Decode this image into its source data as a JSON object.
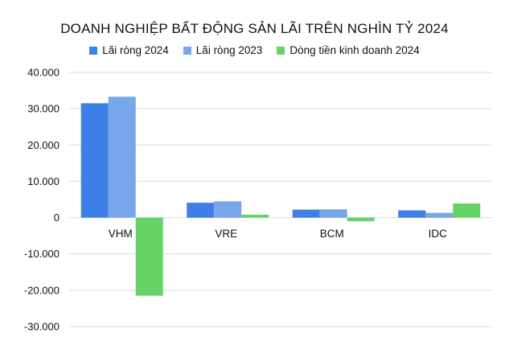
{
  "chart_data": {
    "type": "bar",
    "title": "DOANH NGHIỆP BẤT ĐỘNG SẢN LÃI TRÊN NGHÌN TỶ 2024",
    "categories": [
      "VHM",
      "VRE",
      "BCM",
      "IDC"
    ],
    "series": [
      {
        "name": "Lãi ròng 2024",
        "color": "#3f7fe8",
        "values": [
          31500,
          4100,
          2200,
          2000
        ]
      },
      {
        "name": "Lãi ròng 2023",
        "color": "#78a6ea",
        "values": [
          33300,
          4500,
          2300,
          1300
        ]
      },
      {
        "name": "Dòng tiền kinh doanh 2024",
        "color": "#66d366",
        "values": [
          -21500,
          800,
          -1000,
          3900
        ]
      }
    ],
    "ylim": [
      -30000,
      40000
    ],
    "yticks": [
      40000,
      30000,
      20000,
      10000,
      0,
      -10000,
      -20000,
      -30000
    ],
    "ytick_labels": [
      "40.000",
      "30.000",
      "20.000",
      "10.000",
      "0",
      "-10.000",
      "-20.000",
      "-30.000"
    ],
    "grid": true,
    "legend_position": "top-center",
    "xlabel": "",
    "ylabel": ""
  }
}
